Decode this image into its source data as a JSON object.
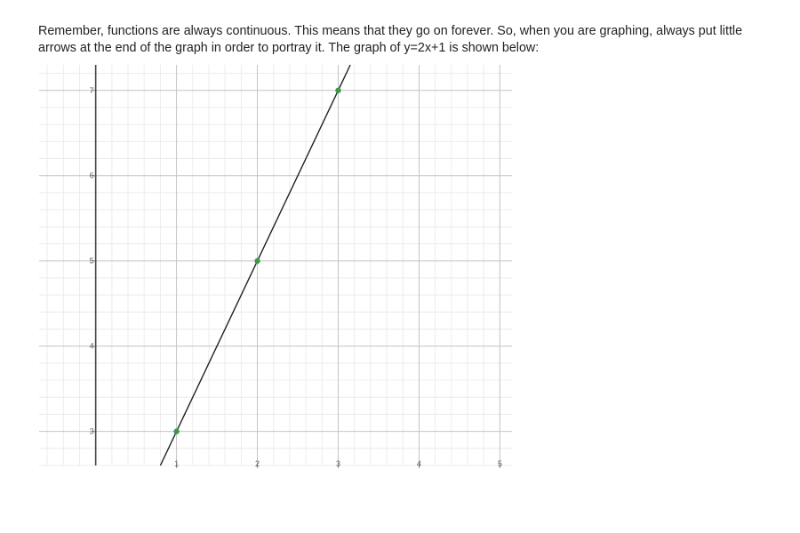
{
  "intro_text": "Remember, functions are always continuous. This means that they go on forever. So, when you are graphing, always put little arrows at the end of the graph in order to portray it. The graph of y=2x+1 is shown below:",
  "chart_data": {
    "type": "line",
    "title": "",
    "xlabel": "",
    "ylabel": "",
    "xlim": [
      -0.7,
      5.15
    ],
    "ylim": [
      2.6,
      7.3
    ],
    "grid": true,
    "x_ticks": [
      "1",
      "2",
      "3",
      "4",
      "5"
    ],
    "y_ticks": [
      "3",
      "4",
      "5",
      "6",
      "7"
    ],
    "series": [
      {
        "equation": "y=2x+1",
        "slope": 2,
        "intercept": 1,
        "color": "#222222"
      }
    ],
    "points": [
      {
        "x": 1,
        "y": 3
      },
      {
        "x": 2,
        "y": 5
      },
      {
        "x": 3,
        "y": 7
      }
    ],
    "point_color": "#3a9a4a"
  }
}
